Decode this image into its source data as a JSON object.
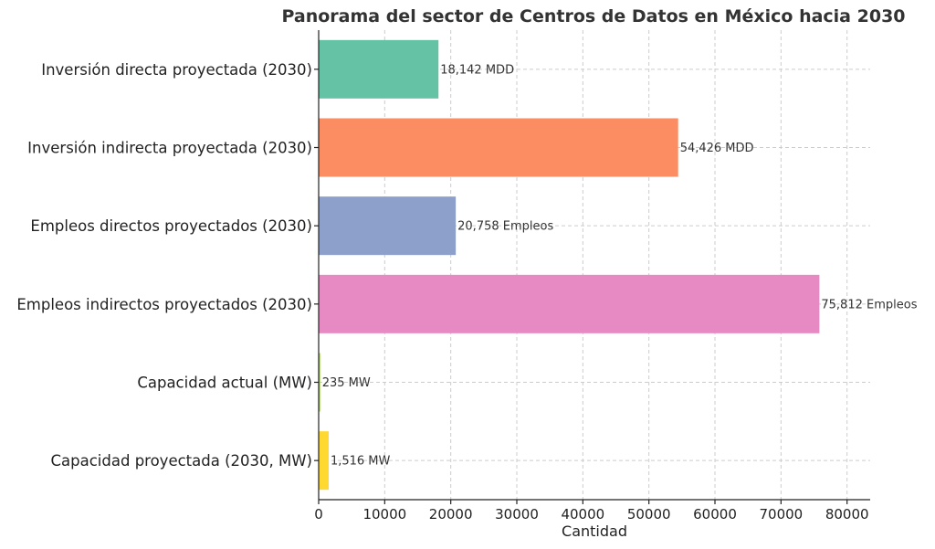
{
  "chart_data": {
    "type": "bar",
    "orientation": "horizontal",
    "title": "Panorama del sector de Centros de Datos en México hacia 2030",
    "xlabel": "Cantidad",
    "ylabel": "",
    "xlim": [
      0,
      83500
    ],
    "xticks": [
      0,
      10000,
      20000,
      30000,
      40000,
      50000,
      60000,
      70000,
      80000
    ],
    "grid": true,
    "categories": [
      "Inversión directa proyectada (2030)",
      "Inversión indirecta proyectada (2030)",
      "Empleos directos proyectados (2030)",
      "Empleos indirectos proyectados (2030)",
      "Capacidad actual (MW)",
      "Capacidad proyectada (2030, MW)"
    ],
    "values": [
      18142,
      54426,
      20758,
      75812,
      235,
      1516
    ],
    "data_labels": [
      "18,142 MDD",
      "54,426 MDD",
      "20,758 Empleos",
      "75,812 Empleos",
      "235 MW",
      "1,516 MW"
    ],
    "colors": [
      "#66c2a5",
      "#fc8d62",
      "#8da0cb",
      "#e78ac3",
      "#a6d854",
      "#ffd92f"
    ]
  }
}
